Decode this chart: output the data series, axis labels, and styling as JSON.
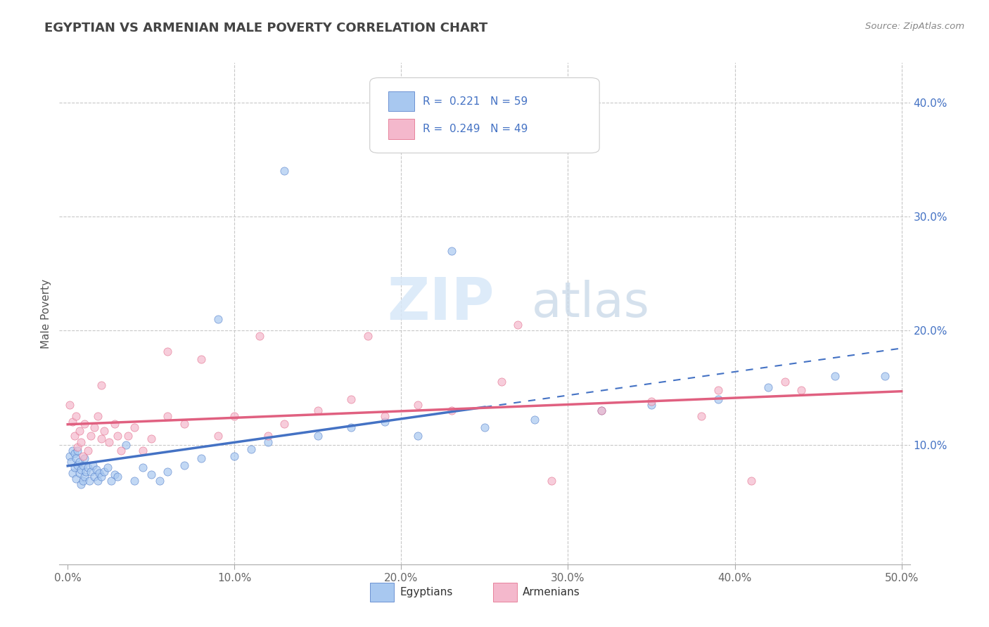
{
  "title": "EGYPTIAN VS ARMENIAN MALE POVERTY CORRELATION CHART",
  "source": "Source: ZipAtlas.com",
  "ylabel": "Male Poverty",
  "xlim": [
    -0.005,
    0.505
  ],
  "ylim": [
    -0.005,
    0.435
  ],
  "xticks": [
    0.0,
    0.1,
    0.2,
    0.3,
    0.4,
    0.5
  ],
  "xtick_labels": [
    "0.0%",
    "10.0%",
    "20.0%",
    "30.0%",
    "40.0%",
    "50.0%"
  ],
  "ytick_labels_show": [
    "10.0%",
    "20.0%",
    "30.0%",
    "40.0%"
  ],
  "ytick_vals": [
    0.1,
    0.2,
    0.3,
    0.4
  ],
  "egyptian_color": "#a8c8f0",
  "armenian_color": "#f4b8cc",
  "trendline_egyptian_color": "#4472c4",
  "trendline_armenian_color": "#e06080",
  "r_egyptian": 0.221,
  "n_egyptian": 59,
  "r_armenian": 0.249,
  "n_armenian": 49,
  "background_color": "#ffffff",
  "grid_color": "#c8c8c8",
  "watermark_zip": "ZIP",
  "watermark_atlas": "atlas",
  "title_color": "#444444",
  "source_color": "#888888",
  "ytick_color": "#4472c4",
  "xtick_color": "#666666",
  "eg_pts_x": [
    0.001,
    0.002,
    0.003,
    0.003,
    0.004,
    0.004,
    0.005,
    0.005,
    0.006,
    0.006,
    0.007,
    0.007,
    0.008,
    0.008,
    0.009,
    0.009,
    0.01,
    0.01,
    0.011,
    0.012,
    0.013,
    0.014,
    0.015,
    0.016,
    0.017,
    0.018,
    0.019,
    0.02,
    0.022,
    0.024,
    0.026,
    0.028,
    0.03,
    0.035,
    0.04,
    0.045,
    0.05,
    0.055,
    0.06,
    0.07,
    0.08,
    0.09,
    0.1,
    0.11,
    0.12,
    0.13,
    0.15,
    0.17,
    0.19,
    0.21,
    0.23,
    0.25,
    0.28,
    0.32,
    0.35,
    0.39,
    0.42,
    0.46,
    0.49
  ],
  "eg_pts_y": [
    0.09,
    0.085,
    0.095,
    0.075,
    0.08,
    0.092,
    0.088,
    0.07,
    0.082,
    0.095,
    0.075,
    0.085,
    0.065,
    0.078,
    0.068,
    0.082,
    0.072,
    0.088,
    0.076,
    0.08,
    0.068,
    0.076,
    0.082,
    0.072,
    0.078,
    0.068,
    0.075,
    0.072,
    0.076,
    0.08,
    0.068,
    0.074,
    0.072,
    0.1,
    0.068,
    0.08,
    0.074,
    0.068,
    0.076,
    0.082,
    0.088,
    0.21,
    0.09,
    0.096,
    0.102,
    0.34,
    0.108,
    0.115,
    0.12,
    0.108,
    0.27,
    0.115,
    0.122,
    0.13,
    0.135,
    0.14,
    0.15,
    0.16,
    0.16
  ],
  "arm_pts_x": [
    0.001,
    0.003,
    0.004,
    0.005,
    0.006,
    0.007,
    0.008,
    0.009,
    0.01,
    0.012,
    0.014,
    0.016,
    0.018,
    0.02,
    0.022,
    0.025,
    0.028,
    0.032,
    0.036,
    0.04,
    0.05,
    0.06,
    0.07,
    0.08,
    0.09,
    0.1,
    0.115,
    0.13,
    0.15,
    0.17,
    0.19,
    0.21,
    0.23,
    0.26,
    0.29,
    0.32,
    0.35,
    0.38,
    0.41,
    0.44,
    0.02,
    0.03,
    0.045,
    0.06,
    0.12,
    0.18,
    0.27,
    0.39,
    0.43
  ],
  "arm_pts_y": [
    0.135,
    0.12,
    0.108,
    0.125,
    0.098,
    0.112,
    0.102,
    0.09,
    0.118,
    0.095,
    0.108,
    0.115,
    0.125,
    0.105,
    0.112,
    0.102,
    0.118,
    0.095,
    0.108,
    0.115,
    0.105,
    0.182,
    0.118,
    0.175,
    0.108,
    0.125,
    0.195,
    0.118,
    0.13,
    0.14,
    0.125,
    0.135,
    0.13,
    0.155,
    0.068,
    0.13,
    0.138,
    0.125,
    0.068,
    0.148,
    0.152,
    0.108,
    0.095,
    0.125,
    0.108,
    0.195,
    0.205,
    0.148,
    0.155
  ]
}
